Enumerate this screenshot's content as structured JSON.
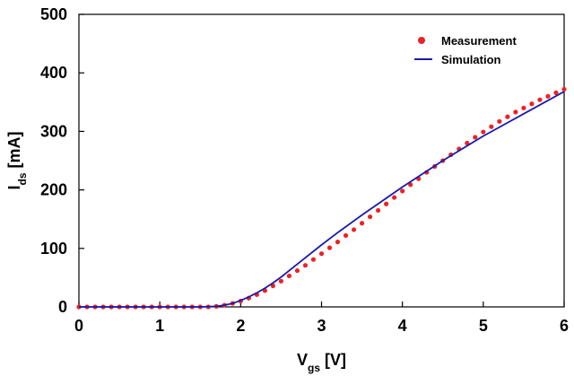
{
  "chart_data": {
    "type": "line",
    "title": "",
    "xlabel_main": "V",
    "xlabel_sub": "gs",
    "xlabel_unit": " [V]",
    "ylabel_main": "I",
    "ylabel_sub": "ds",
    "ylabel_unit": " [mA]",
    "xlim": [
      0,
      6
    ],
    "ylim": [
      0,
      500
    ],
    "x_ticks": [
      "0",
      "1",
      "2",
      "3",
      "4",
      "5",
      "6"
    ],
    "y_ticks": [
      "0",
      "100",
      "200",
      "300",
      "400",
      "500"
    ],
    "grid": false,
    "legend_position": "top-right",
    "series": [
      {
        "name": "Measurement",
        "style": "markers",
        "color": "#ee2222",
        "x": [
          0,
          0.1,
          0.2,
          0.3,
          0.4,
          0.5,
          0.6,
          0.7,
          0.8,
          0.9,
          1.0,
          1.1,
          1.2,
          1.3,
          1.4,
          1.5,
          1.6,
          1.7,
          1.8,
          1.9,
          2.0,
          2.1,
          2.2,
          2.3,
          2.4,
          2.5,
          2.6,
          2.7,
          2.8,
          2.9,
          3.0,
          3.1,
          3.2,
          3.3,
          3.4,
          3.5,
          3.6,
          3.7,
          3.8,
          3.9,
          4.0,
          4.1,
          4.2,
          4.3,
          4.4,
          4.5,
          4.6,
          4.7,
          4.8,
          4.9,
          5.0,
          5.1,
          5.2,
          5.3,
          5.4,
          5.5,
          5.6,
          5.7,
          5.8,
          5.9,
          6.0
        ],
        "y": [
          0,
          0,
          0,
          0,
          0,
          0,
          0,
          0,
          0,
          0,
          0,
          0,
          0,
          0,
          0,
          0,
          0,
          1,
          3,
          6,
          10,
          15,
          21,
          28,
          36,
          44,
          53,
          62,
          71,
          81,
          91,
          101,
          111,
          122,
          132,
          143,
          154,
          165,
          176,
          187,
          198,
          209,
          219,
          230,
          240,
          250,
          260,
          270,
          280,
          290,
          299,
          308,
          317,
          325,
          333,
          340,
          347,
          354,
          360,
          366,
          372
        ]
      },
      {
        "name": "Simulation",
        "style": "line",
        "color": "#1a1aaa",
        "x": [
          0,
          1.0,
          1.5,
          1.7,
          1.8,
          1.9,
          2.0,
          2.1,
          2.2,
          2.3,
          2.4,
          2.5,
          2.6,
          2.8,
          3.0,
          3.2,
          3.5,
          4.0,
          4.5,
          5.0,
          5.5,
          6.0
        ],
        "y": [
          0,
          0,
          0,
          1,
          3,
          6,
          11,
          17,
          24,
          32,
          41,
          51,
          62,
          84,
          106,
          127,
          157,
          205,
          250,
          292,
          330,
          368
        ]
      }
    ]
  }
}
